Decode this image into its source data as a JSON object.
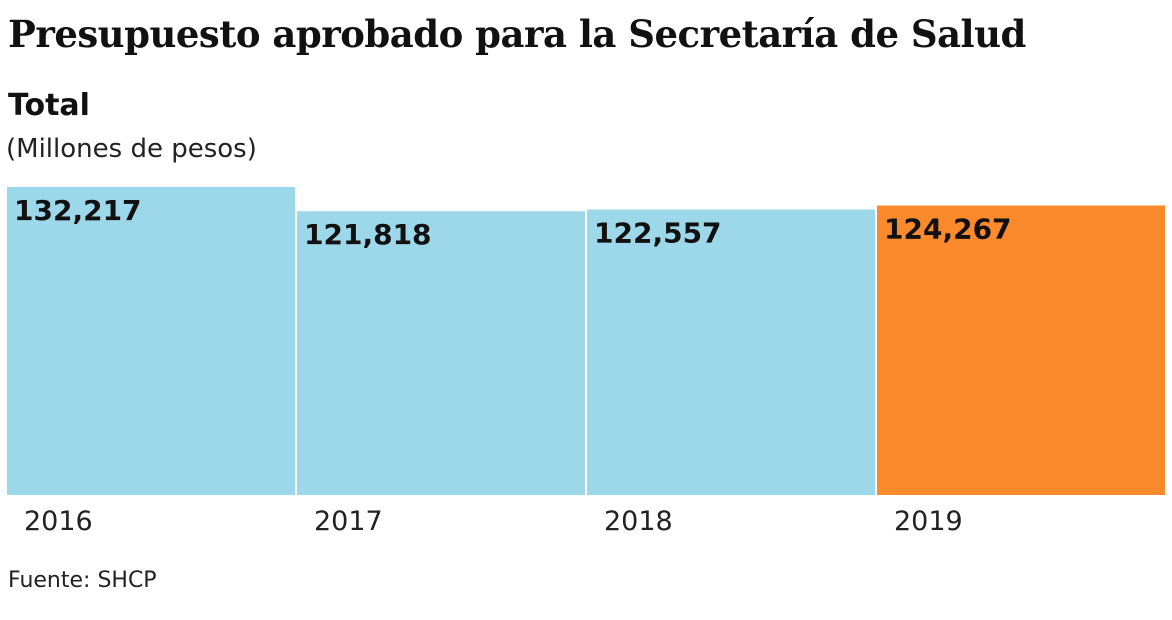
{
  "chart_data": {
    "type": "bar",
    "title": "Presupuesto aprobado para la Secretaría de Salud",
    "subtitle": "Total",
    "unit": "(Millones de pesos)",
    "categories": [
      "2016",
      "2017",
      "2018",
      "2019"
    ],
    "values": [
      132217,
      121818,
      122557,
      124267
    ],
    "value_labels": [
      "132,217",
      "121,818",
      "122,557",
      "124,267"
    ],
    "colors": [
      "#9dd7ea",
      "#9dd7ea",
      "#9dd7ea",
      "#fb8a2c"
    ],
    "ylim": [
      0,
      132217
    ],
    "grid": false,
    "source": "Fuente: SHCP"
  }
}
